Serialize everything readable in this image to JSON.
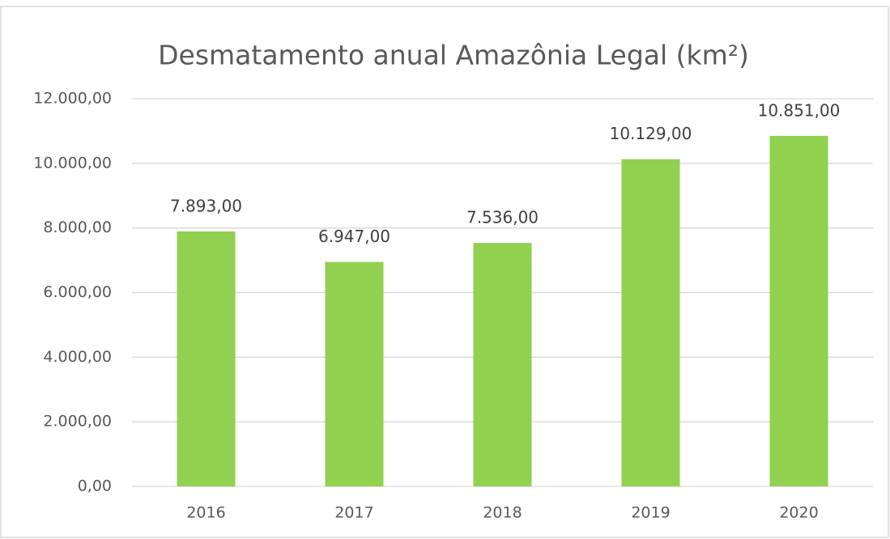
{
  "chart_data": {
    "type": "bar",
    "title": "Desmatamento anual Amazônia Legal (km²)",
    "categories": [
      "2016",
      "2017",
      "2018",
      "2019",
      "2020"
    ],
    "values": [
      7893,
      6947,
      7536,
      10129,
      10851
    ],
    "value_labels": [
      "7.893,00",
      "6.947,00",
      "7.536,00",
      "10.129,00",
      "10.851,00"
    ],
    "color": "#92d050",
    "ylim": [
      0,
      12000
    ],
    "yticks": [
      {
        "value": 0,
        "label": "0,00"
      },
      {
        "value": 2000,
        "label": "2.000,00"
      },
      {
        "value": 4000,
        "label": "4.000,00"
      },
      {
        "value": 6000,
        "label": "6.000,00"
      },
      {
        "value": 8000,
        "label": "8.000,00"
      },
      {
        "value": 10000,
        "label": "10.000,00"
      },
      {
        "value": 12000,
        "label": "12.000,00"
      }
    ],
    "grid": true
  }
}
